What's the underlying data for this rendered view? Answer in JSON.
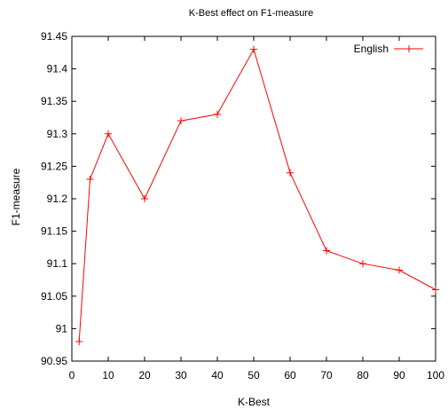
{
  "chart_data": {
    "type": "line",
    "title": "K-Best effect on F1-measure",
    "xlabel": "K-Best",
    "ylabel": "F1-measure",
    "xlim": [
      0,
      100
    ],
    "ylim": [
      90.95,
      91.45
    ],
    "xticks": [
      "0",
      "10",
      "20",
      "30",
      "40",
      "50",
      "60",
      "70",
      "80",
      "90",
      "100"
    ],
    "yticks": [
      "90.95",
      "91",
      "91.05",
      "91.1",
      "91.15",
      "91.2",
      "91.25",
      "91.3",
      "91.35",
      "91.4",
      "91.45"
    ],
    "grid": false,
    "legend_position": "top-right",
    "series": [
      {
        "name": "English",
        "color": "#ff0000",
        "marker": "plus",
        "x": [
          2,
          5,
          10,
          20,
          30,
          40,
          50,
          60,
          70,
          80,
          90,
          100
        ],
        "y": [
          90.98,
          91.23,
          91.3,
          91.2,
          91.32,
          91.33,
          91.43,
          91.24,
          91.12,
          91.1,
          91.09,
          91.06
        ]
      }
    ]
  }
}
